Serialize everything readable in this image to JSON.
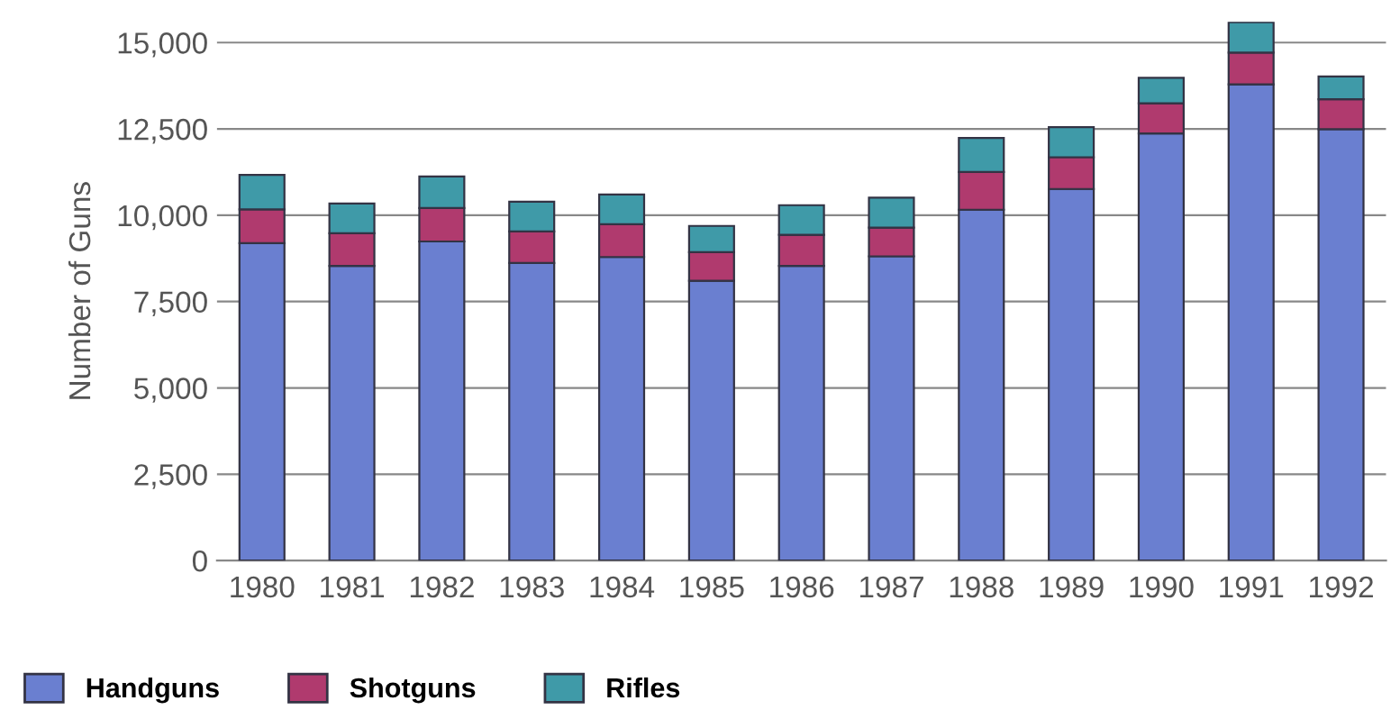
{
  "chart_data": {
    "type": "bar",
    "stacked": true,
    "ylabel": "Number of Guns",
    "categories": [
      "1980",
      "1981",
      "1982",
      "1983",
      "1984",
      "1985",
      "1986",
      "1987",
      "1988",
      "1989",
      "1990",
      "1991",
      "1992"
    ],
    "series": [
      {
        "name": "Handguns",
        "color": "#6a7fd0",
        "values": [
          9190,
          8530,
          9240,
          8620,
          8790,
          8100,
          8530,
          8810,
          10160,
          10760,
          12370,
          13790,
          12490
        ]
      },
      {
        "name": "Shotguns",
        "color": "#b03a6e",
        "values": [
          980,
          950,
          970,
          910,
          950,
          830,
          900,
          830,
          1090,
          920,
          870,
          920,
          870
        ]
      },
      {
        "name": "Rifles",
        "color": "#3f9aa8",
        "values": [
          1000,
          860,
          910,
          860,
          860,
          760,
          860,
          870,
          990,
          870,
          740,
          880,
          660
        ]
      }
    ],
    "ylim": [
      0,
      15600
    ],
    "yticks": [
      0,
      {
        "value": 2500,
        "label": "2,500"
      },
      {
        "value": 5000,
        "label": "5,000"
      },
      {
        "value": 7500,
        "label": "7,500"
      },
      {
        "value": 10000,
        "label": "10,000"
      },
      {
        "value": 12500,
        "label": "12,500"
      },
      {
        "value": 15000,
        "label": "15,000"
      }
    ],
    "grid": "y",
    "legend": "bottom left"
  }
}
